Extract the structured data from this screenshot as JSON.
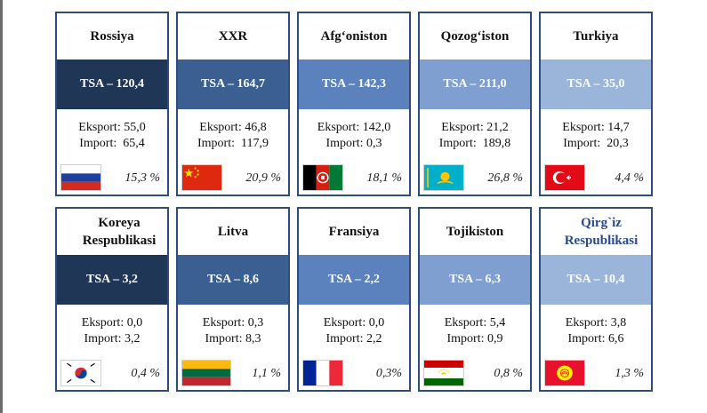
{
  "cards": [
    {
      "name": "Rossiya",
      "tsa": "TSA – 120,4",
      "export": "Eksport: 55,0",
      "import": "Import:  65,4",
      "share": "15,3 %",
      "flag": "russia-flag"
    },
    {
      "name": "XXR",
      "tsa": "TSA – 164,7",
      "export": "Eksport: 46,8",
      "import": "Import:  117,9",
      "share": "20,9 %",
      "flag": "china-flag"
    },
    {
      "name": "Afg‘oniston",
      "tsa": "TSA – 142,3",
      "export": "Eksport: 142,0",
      "import": "Import: 0,3",
      "share": "18,1 %",
      "flag": "afghanistan-flag"
    },
    {
      "name": "Qozog‘iston",
      "tsa": "TSA – 211,0",
      "export": "Eksport: 21,2",
      "import": "Import:  189,8",
      "share": "26,8 %",
      "flag": "kazakhstan-flag"
    },
    {
      "name": "Turkiya",
      "tsa": "TSA – 35,0",
      "export": "Eksport: 14,7",
      "import": "Import:  20,3",
      "share": "4,4 %",
      "flag": "turkey-flag"
    },
    {
      "name": "Koreya Respublikasi",
      "tsa": "TSA – 3,2",
      "export": "Eksport: 0,0",
      "import": "Import: 3,2",
      "share": "0,4 %",
      "flag": "south-korea-flag"
    },
    {
      "name": "Litva",
      "tsa": "TSA – 8,6",
      "export": "Eksport: 0,3",
      "import": "Import: 8,3",
      "share": "1,1 %",
      "flag": "lithuania-flag"
    },
    {
      "name": "Fransiya",
      "tsa": "TSA – 2,2",
      "export": "Eksport: 0,0",
      "import": "Import: 2,2",
      "share": "0,3%",
      "flag": "france-flag"
    },
    {
      "name": "Tojikiston",
      "tsa": "TSA – 6,3",
      "export": "Eksport: 5,4",
      "import": "Import: 0,9",
      "share": "0,8 %",
      "flag": "tajikistan-flag"
    },
    {
      "name": "Qirg`iz Respublikasi",
      "tsa": "TSA – 10,4",
      "export": "Eksport: 3,8",
      "import": "Import: 6,6",
      "share": "1,3 %",
      "flag": "kyrgyzstan-flag"
    }
  ],
  "colors": {
    "border": "#2d4d7c",
    "tsa_col1": "#1f3657",
    "tsa_col2": "#3c5f91",
    "tsa_col3": "#5b82bd",
    "tsa_col4": "#7e9fcf",
    "tsa_col5": "#9bb5da",
    "name_highlight": "#2a4a8c"
  }
}
